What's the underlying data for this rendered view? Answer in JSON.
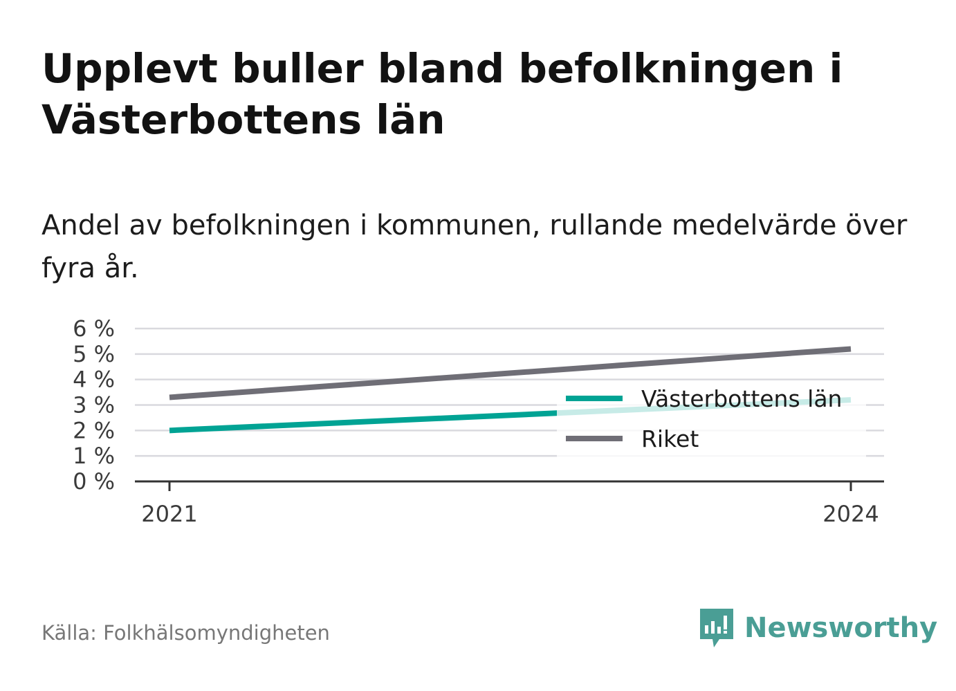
{
  "title": "Upplevt buller bland befolkningen i Västerbottens län",
  "subtitle": "Andel av befolkningen i kommunen, rullande medelvärde över fyra år.",
  "source": "Källa: Folkhälsomyndigheten",
  "brand": {
    "name": "Newsworthy",
    "icon": "newsworthy-logo-icon",
    "color": "#4a9e95"
  },
  "chart_data": {
    "type": "line",
    "x": [
      2021,
      2024
    ],
    "xticks": [
      "2021",
      "2024"
    ],
    "ylim": [
      0,
      6
    ],
    "yticks": [
      "0 %",
      "1 %",
      "2 %",
      "3 %",
      "4 %",
      "5 %",
      "6 %"
    ],
    "grid": true,
    "legend_position": "right",
    "series": [
      {
        "name": "Västerbottens län",
        "values": [
          2.0,
          3.2
        ],
        "color": "#00a394"
      },
      {
        "name": "Riket",
        "values": [
          3.3,
          5.2
        ],
        "color": "#6f6e76"
      }
    ]
  }
}
